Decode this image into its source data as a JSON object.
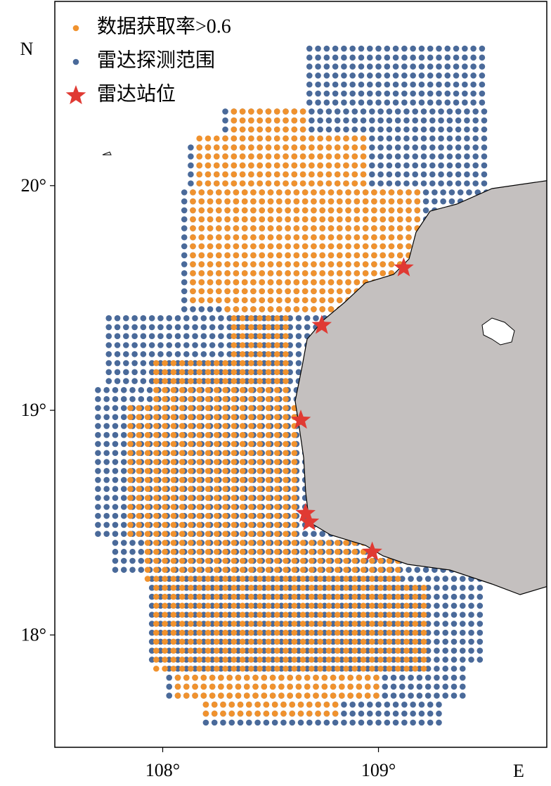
{
  "chart_data": {
    "type": "map",
    "x_axis_label": "E",
    "y_axis_label": "N",
    "xlim": [
      107.5,
      109.78
    ],
    "ylim": [
      17.5,
      20.82
    ],
    "xticks": [
      {
        "value": 108,
        "label": "108°"
      },
      {
        "value": 109,
        "label": "109°"
      }
    ],
    "yticks": [
      {
        "value": 18,
        "label": "18°"
      },
      {
        "value": 19,
        "label": "19°"
      },
      {
        "value": 20,
        "label": "20°"
      }
    ],
    "grid_step": 0.04,
    "legend_position": "upper left",
    "series": [
      {
        "name": "数据获取率>0.6",
        "color": "#f0922e",
        "marker": "dot",
        "blocks": [
          {
            "lat": [
              20.33,
              20.25
            ],
            "lon": [
              108.33,
              108.65
            ]
          },
          {
            "lat": [
              20.21,
              20.01
            ],
            "lon": [
              108.17,
              108.93
            ]
          },
          {
            "lat": [
              19.97,
              19.49
            ],
            "lon": [
              108.14,
              109.18
            ]
          },
          {
            "lat": [
              19.45,
              19.45
            ],
            "lon": [
              108.3,
              109.18
            ]
          },
          {
            "lat": [
              19.41,
              19.25
            ],
            "lon": [
              108.33,
              108.58
            ]
          },
          {
            "lat": [
              19.21,
              19.05
            ],
            "lon": [
              107.97,
              108.58
            ]
          },
          {
            "lat": [
              19.01,
              18.45
            ],
            "lon": [
              107.85,
              108.62
            ]
          },
          {
            "lat": [
              18.41,
              18.25
            ],
            "lon": [
              107.93,
              109.1
            ]
          },
          {
            "lat": [
              18.21,
              17.85
            ],
            "lon": [
              107.97,
              109.2
            ]
          },
          {
            "lat": [
              17.81,
              17.73
            ],
            "lon": [
              108.07,
              109.0
            ]
          },
          {
            "lat": [
              17.69,
              17.65
            ],
            "lon": [
              108.2,
              108.8
            ]
          }
        ]
      },
      {
        "name": "雷达探测范围",
        "color": "#4a6a9a",
        "marker": "dot",
        "blocks": [
          {
            "lat": [
              20.61,
              20.37
            ],
            "lon": [
              108.68,
              109.48
            ]
          },
          {
            "lat": [
              20.33,
              20.21
            ],
            "lon": [
              108.29,
              109.48
            ]
          },
          {
            "lat": [
              20.17,
              20.01
            ],
            "lon": [
              108.13,
              109.48
            ]
          },
          {
            "lat": [
              19.97,
              19.45
            ],
            "lon": [
              108.1,
              109.48
            ]
          },
          {
            "lat": [
              19.41,
              19.13
            ],
            "lon": [
              107.75,
              109.48
            ]
          },
          {
            "lat": [
              19.09,
              18.45
            ],
            "lon": [
              107.7,
              109.48
            ]
          },
          {
            "lat": [
              18.41,
              18.29
            ],
            "lon": [
              107.78,
              109.48
            ]
          },
          {
            "lat": [
              18.25,
              17.89
            ],
            "lon": [
              107.95,
              109.48
            ]
          },
          {
            "lat": [
              17.85,
              17.73
            ],
            "lon": [
              108.03,
              109.4
            ]
          },
          {
            "lat": [
              17.69,
              17.61
            ],
            "lon": [
              108.2,
              109.27
            ]
          }
        ]
      },
      {
        "name": "雷达站位",
        "color": "#e03a33",
        "marker": "star",
        "x": [
          109.117,
          108.737,
          108.64,
          108.662,
          108.679,
          108.971
        ],
        "y": [
          19.634,
          19.378,
          18.956,
          18.541,
          18.503,
          18.369
        ]
      }
    ]
  }
}
